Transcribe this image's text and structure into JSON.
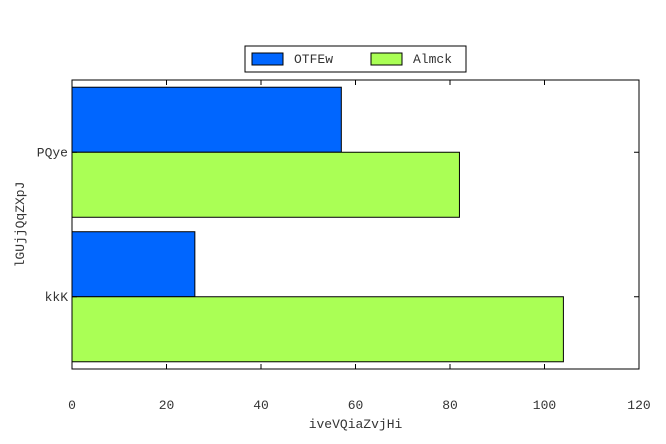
{
  "chart_data": {
    "type": "bar",
    "orientation": "horizontal",
    "categories": [
      "kkK",
      "PQye"
    ],
    "series": [
      {
        "name": "OTFEw",
        "values": [
          26,
          57
        ],
        "color": "#0066ff"
      },
      {
        "name": "Almck",
        "values": [
          104,
          82
        ],
        "color": "#aaff55"
      }
    ],
    "title": "",
    "xlabel": "iveVQiaZvjHi",
    "ylabel": "lGUjjQqZXpJ",
    "xlim": [
      0,
      120
    ],
    "xticks": [
      0,
      20,
      40,
      60,
      80,
      100,
      120
    ],
    "grid": false,
    "legend_position": "top-center"
  }
}
